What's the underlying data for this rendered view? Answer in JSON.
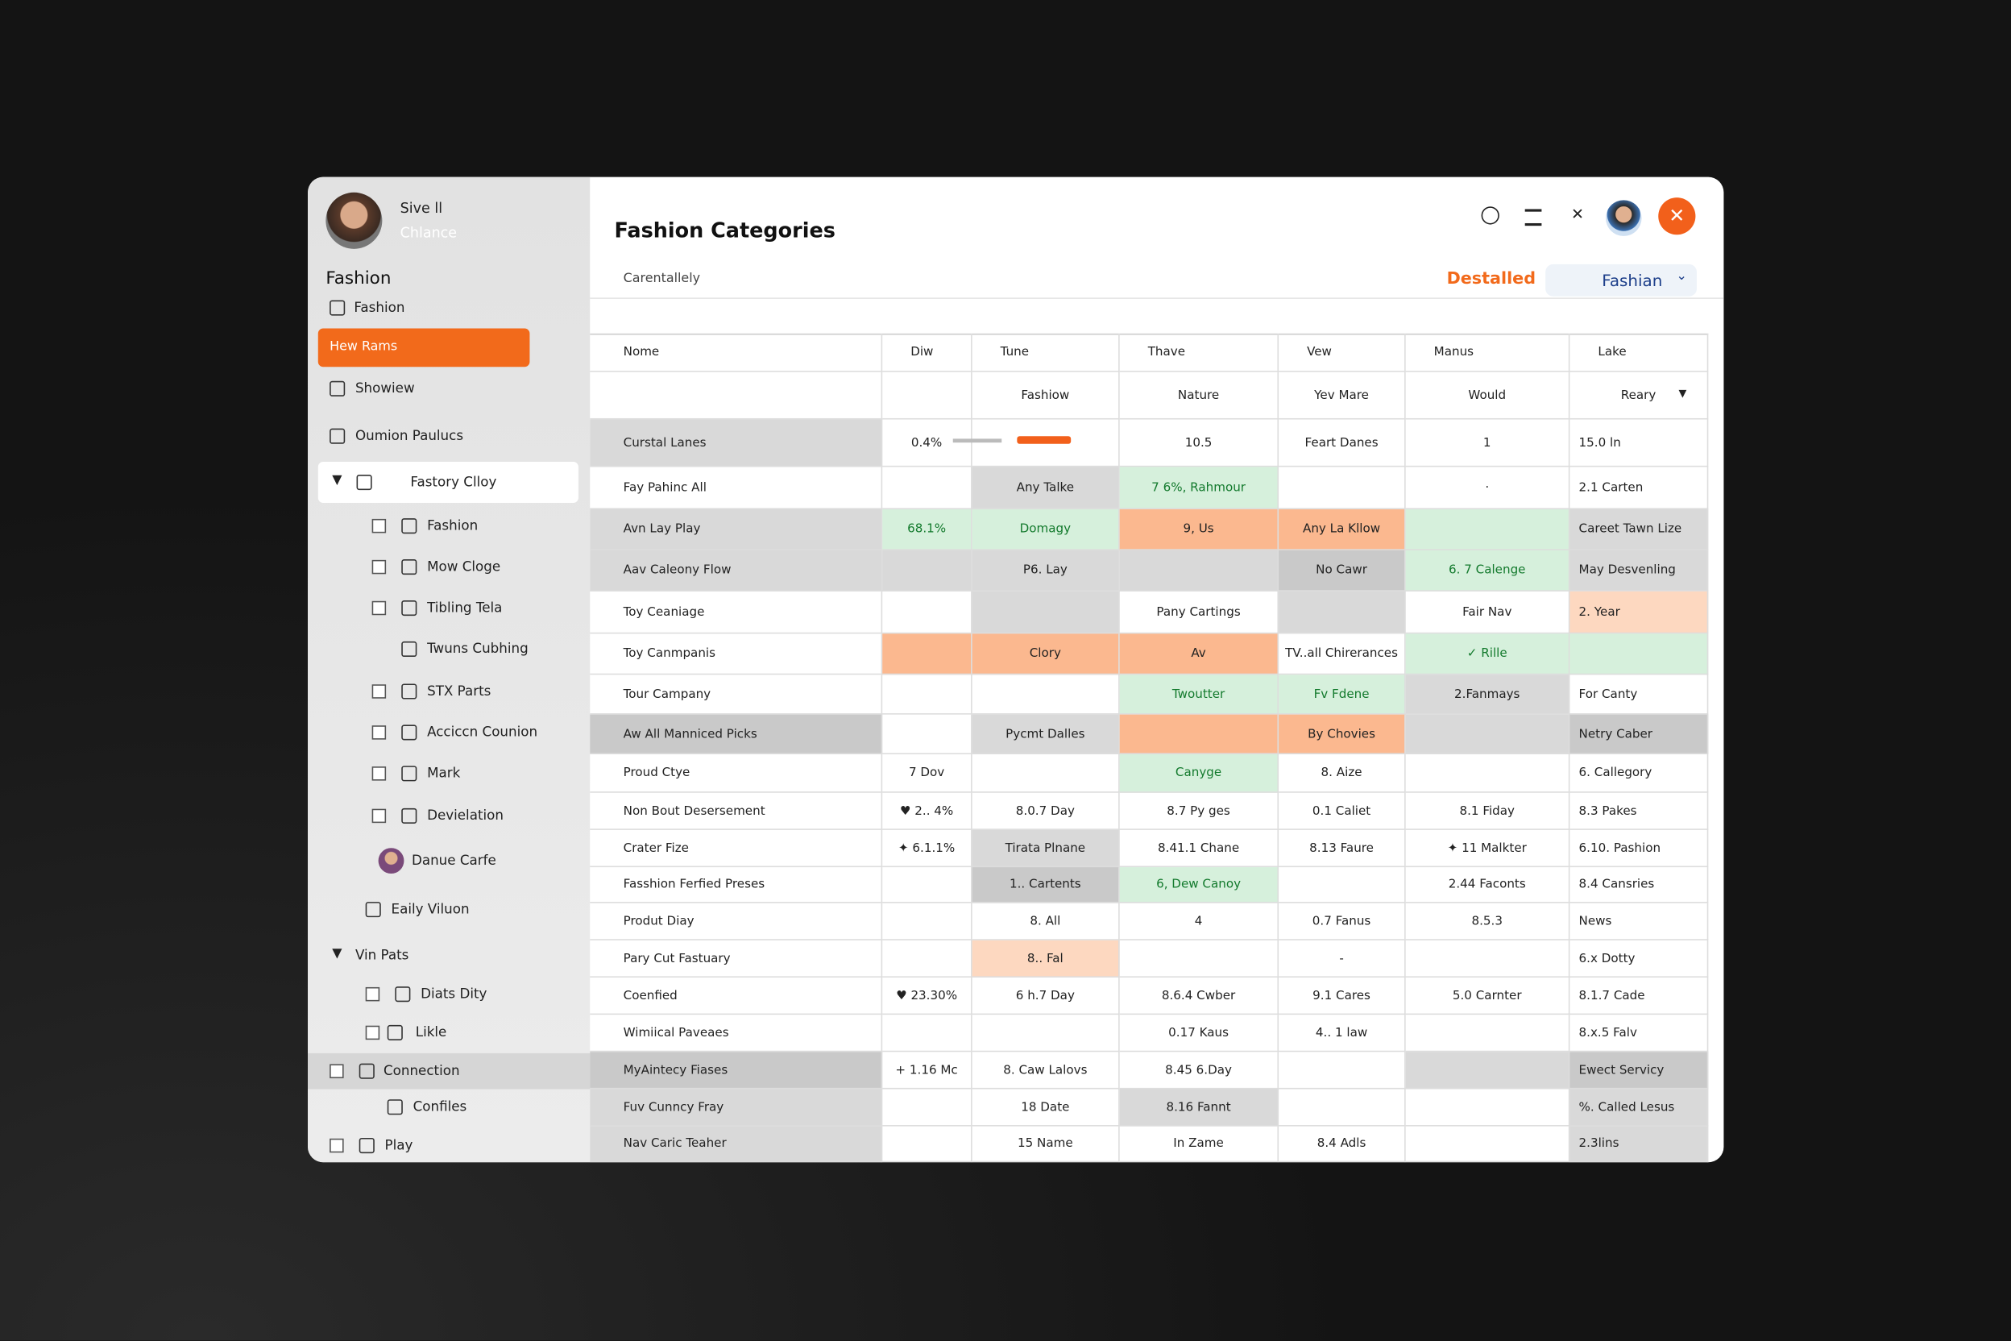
{
  "sidebar": {
    "profile": {
      "name": "Sive ll",
      "subtitle": "Chlance"
    },
    "heading": "Fashion",
    "items": [
      "Fashion",
      "Hew Rams",
      "Showiew",
      "Oumion Paulucs",
      "Fastory Clloy",
      "Fashion",
      "Mow Cloge",
      "Tibling Tela",
      "Twuns Cubhing",
      "STX Parts",
      "Acciccn Counion",
      "Mark",
      "Devielation",
      "Danue Carfe",
      "Eaily Viluon",
      "Vin Pats",
      "Diats Dity",
      "Likle",
      "Connection",
      "Confiles",
      "Play"
    ]
  },
  "header": {
    "title": "Fashion Categories",
    "subtitle": "Carentallely",
    "tab": "Destalled",
    "dropdown": "Fashian"
  },
  "table": {
    "columns": [
      "Nome",
      "Diw",
      "Tune",
      "Thave",
      "Vew",
      "Manus",
      "Lake"
    ],
    "subheader": [
      null,
      null,
      "Fashiow",
      "Nature",
      "Yev Mare",
      "Would",
      "Reary"
    ],
    "rows": [
      {
        "cells": [
          "Curstal Lanes",
          "0.4%",
          null,
          "10.5",
          "Feart Danes",
          "1",
          "15.0 ln"
        ],
        "tones": [
          "gray",
          null,
          null,
          null,
          null,
          null,
          null
        ]
      },
      {
        "cells": [
          "Fay Pahinc All",
          null,
          "Any Talke",
          "7 6%, Rahmour",
          null,
          "·",
          "2.1 Carten"
        ],
        "tones": [
          null,
          null,
          "gray",
          "green",
          null,
          null,
          null
        ]
      },
      {
        "cells": [
          "Avn Lay Play",
          "68.1%",
          "Domagy",
          "9, Us",
          "Any La Kllow",
          null,
          "Careet Tawn Lize"
        ],
        "tones": [
          "gray",
          "green",
          "green",
          "orange",
          "orange",
          "green",
          "gray"
        ]
      },
      {
        "cells": [
          "Aav Caleony Flow",
          null,
          "P6. Lay",
          null,
          "No Cawr",
          "6. 7 Calenge",
          "May Desvenling"
        ],
        "tones": [
          "gray",
          "gray",
          "gray",
          "gray",
          "dark",
          "green",
          "gray"
        ]
      },
      {
        "cells": [
          "Toy Ceaniage",
          null,
          null,
          "Pany Cartings",
          null,
          "Fair Nav",
          "2. Year"
        ],
        "tones": [
          null,
          null,
          "gray",
          null,
          "gray",
          null,
          "peach"
        ]
      },
      {
        "cells": [
          "Toy Canmpanis",
          null,
          "Clory",
          "Av",
          "TV..all Chirerances",
          "✓ Rille",
          null
        ],
        "tones": [
          null,
          "orange",
          "orange",
          "orange",
          null,
          "green",
          "green"
        ]
      },
      {
        "cells": [
          "Tour Campany",
          null,
          null,
          "Twoutter",
          "Fv Fdene",
          "2.Fanmays",
          "For Canty"
        ],
        "tones": [
          null,
          null,
          null,
          "green",
          "green",
          "gray",
          null
        ]
      },
      {
        "cells": [
          "Aw All Manniced Picks",
          null,
          "Pycmt Dalles",
          null,
          "By Chovies",
          null,
          "Netry Caber"
        ],
        "tones": [
          "dark",
          null,
          "gray",
          "orange",
          "orange",
          "gray",
          "dark"
        ]
      },
      {
        "cells": [
          "Proud Ctye",
          "7 Dov",
          null,
          "Canyge",
          "8. Aize",
          null,
          "6. Callegory"
        ],
        "tones": [
          null,
          null,
          null,
          "green",
          null,
          null,
          null
        ]
      },
      {
        "cells": [
          "Non Bout Desersement",
          "♥ 2.. 4%",
          "8.0.7 Day",
          "8.7 Py ges",
          "0.1 Caliet",
          "8.1 Fiday",
          "8.3 Pakes"
        ],
        "tones": [
          null,
          null,
          null,
          null,
          null,
          null,
          null
        ]
      },
      {
        "cells": [
          "Crater Fize",
          "✦ 6.1.1%",
          "Tirata Plnane",
          "8.41.1 Chane",
          "8.13 Faure",
          "✦ 11 Malkter",
          "6.10. Pashion"
        ],
        "tones": [
          null,
          null,
          "gray",
          null,
          null,
          null,
          null
        ]
      },
      {
        "cells": [
          "Fasshion Ferfied Preses",
          null,
          "1.. Cartents",
          "6, Dew Canoy",
          null,
          "2.44 Faconts",
          "8.4 Cansries"
        ],
        "tones": [
          null,
          null,
          "dark",
          "green",
          null,
          null,
          null
        ]
      },
      {
        "cells": [
          "Produt Diay",
          null,
          "8. All",
          "4",
          "0.7 Fanus",
          "8.5.3",
          "News"
        ],
        "tones": [
          null,
          null,
          null,
          null,
          null,
          null,
          null
        ]
      },
      {
        "cells": [
          "Pary Cut Fastuary",
          null,
          "8.. Fal",
          null,
          "-",
          null,
          "6.x Dotty"
        ],
        "tones": [
          null,
          null,
          "peach",
          null,
          null,
          null,
          null
        ]
      },
      {
        "cells": [
          "Coenfied",
          "♥ 23.30%",
          "6 h.7 Day",
          "8.6.4 Cwber",
          "9.1 Cares",
          "5.0 Carnter",
          "8.1.7 Cade"
        ],
        "tones": [
          null,
          null,
          null,
          null,
          null,
          null,
          null
        ]
      },
      {
        "cells": [
          "Wimiical Paveaes",
          null,
          null,
          "0.17 Kaus",
          "4.. 1 law",
          null,
          "8.x.5 Falv"
        ],
        "tones": [
          null,
          null,
          null,
          null,
          null,
          null,
          null
        ]
      },
      {
        "cells": [
          "MyAintecy Fiases",
          "+ 1.16 Mc",
          "8. Caw Lalovs",
          "8.45 6.Day",
          null,
          null,
          "Ewect Servicy"
        ],
        "tones": [
          "dark",
          null,
          null,
          null,
          null,
          "gray",
          "dark"
        ]
      },
      {
        "cells": [
          "Fuv Cunncy Fray",
          null,
          "18 Date",
          "8.16 Fannt",
          null,
          null,
          "%. Called Lesus"
        ],
        "tones": [
          "gray",
          null,
          null,
          "gray",
          null,
          null,
          "gray"
        ]
      },
      {
        "cells": [
          "Nav Caric Teaher",
          null,
          "15 Name",
          "In Zame",
          "8.4 Adls",
          null,
          "2.3lins"
        ],
        "tones": [
          "gray",
          null,
          null,
          null,
          null,
          null,
          "gray"
        ]
      }
    ]
  }
}
